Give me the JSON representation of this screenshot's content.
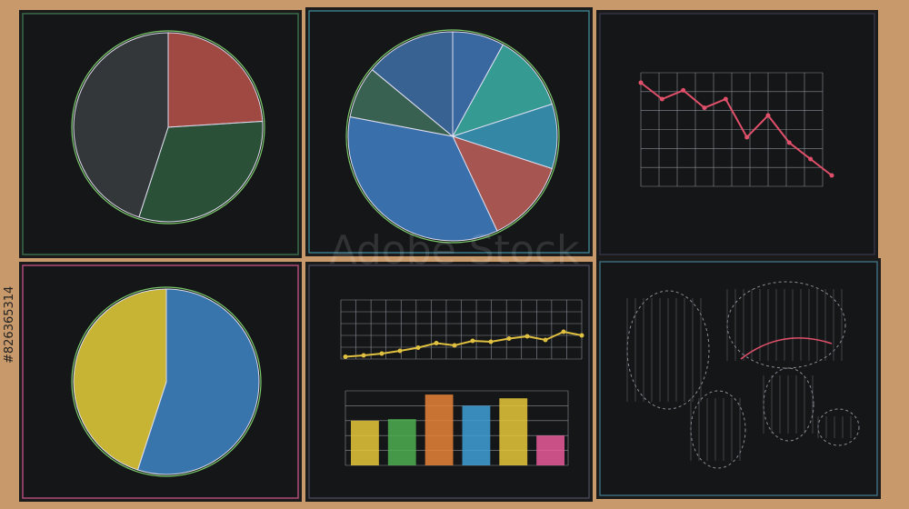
{
  "watermark": "Adobe Stock",
  "stock_id": "#826365314",
  "panels": [
    {
      "type": "pie",
      "values": [
        24,
        31,
        45
      ],
      "colors": [
        "#b8514a",
        "#2f5a3e",
        "#3a3d40"
      ]
    },
    {
      "type": "pie",
      "values": [
        8,
        12,
        10,
        13,
        35,
        8,
        14
      ],
      "colors": [
        "#3f76b8",
        "#3bb3a8",
        "#3a9cbf",
        "#c0605a",
        "#3f7fc4",
        "#3f6f5c",
        "#3e70a8"
      ]
    },
    {
      "type": "line",
      "values": [
        95,
        80,
        88,
        72,
        80,
        45,
        65,
        40,
        25,
        10
      ],
      "color": "#e0506a",
      "ylim": [
        0,
        100
      ]
    },
    {
      "type": "pie",
      "values": [
        55,
        45
      ],
      "colors": [
        "#3f86c8",
        "#e6cf3a"
      ]
    },
    {
      "type": "line-bar",
      "values": [
        5,
        8,
        12,
        18,
        25,
        35,
        30,
        40,
        38,
        45,
        50,
        42,
        60,
        52
      ],
      "color": "#e0c040",
      "bars": [
        60,
        62,
        95,
        80,
        90,
        40
      ],
      "bar_colors": [
        "#e8c83a",
        "#4caf50",
        "#e8833a",
        "#3fa0d8",
        "#e8c83a",
        "#e75a9a"
      ],
      "ylim": [
        0,
        100
      ]
    },
    {
      "type": "map"
    }
  ]
}
